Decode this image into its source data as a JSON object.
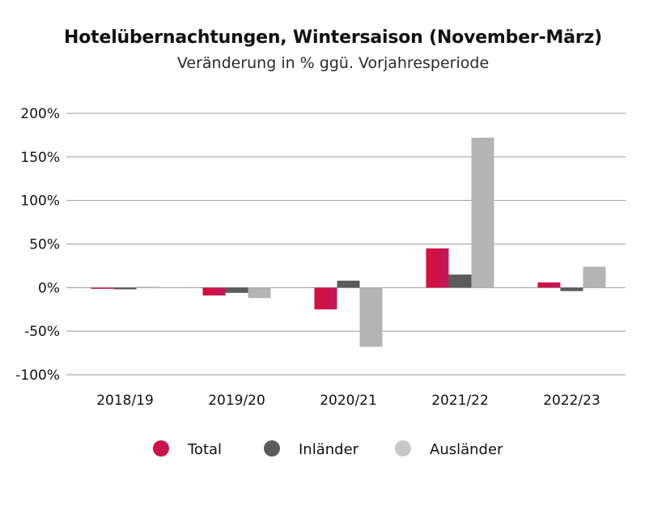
{
  "chart_data": {
    "type": "bar",
    "title": "Hotelübernachtungen, Wintersaison (November-März)",
    "subtitle": "Veränderung in % ggü. Vorjahresperiode",
    "xlabel": "",
    "ylabel": "",
    "categories": [
      "2018/19",
      "2019/20",
      "2020/21",
      "2021/22",
      "2022/23"
    ],
    "series": [
      {
        "name": "Total",
        "values": [
          -1,
          -9,
          -25,
          45,
          6
        ],
        "color": "#d40f3c",
        "color_end": "#c2185b"
      },
      {
        "name": "Inländer",
        "values": [
          -2,
          -6,
          8,
          15,
          -4
        ],
        "color": "#5b5b5b"
      },
      {
        "name": "Ausländer",
        "values": [
          1,
          -12,
          -68,
          172,
          24
        ],
        "color": "#b4b4b4"
      }
    ],
    "ylim": [
      -100,
      200
    ],
    "yticks": [
      -100,
      -50,
      0,
      50,
      100,
      150,
      200
    ],
    "ytick_labels": [
      "-100%",
      "-50%",
      "0%",
      "50%",
      "100%",
      "150%",
      "200%"
    ],
    "grid": true,
    "legend_position": "bottom"
  }
}
